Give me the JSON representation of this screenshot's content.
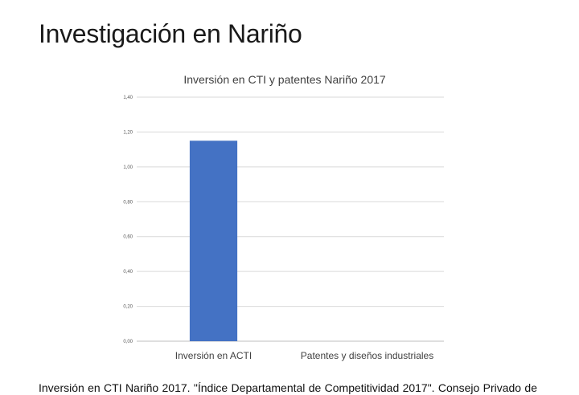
{
  "slide": {
    "title": "Investigación en Nariño",
    "caption": "Inversión en CTI Nariño 2017. \"Índice Departamental de Competitividad 2017\". Consejo Privado de"
  },
  "chart_data": {
    "type": "bar",
    "title": "Inversión en CTI y patentes Nariño 2017",
    "categories": [
      "Inversión en ACTI",
      "Patentes y diseños industriales"
    ],
    "values": [
      1.15,
      0
    ],
    "ylim": [
      0,
      1.4
    ],
    "yticks": [
      "0,00",
      "0,20",
      "0,40",
      "0,60",
      "0,80",
      "1,00",
      "1,20",
      "1,40"
    ],
    "grid": true,
    "legend": "none",
    "bar_color": "#4472c4",
    "grid_color": "#d9d9d9",
    "axis_color": "#bfbfbf"
  }
}
